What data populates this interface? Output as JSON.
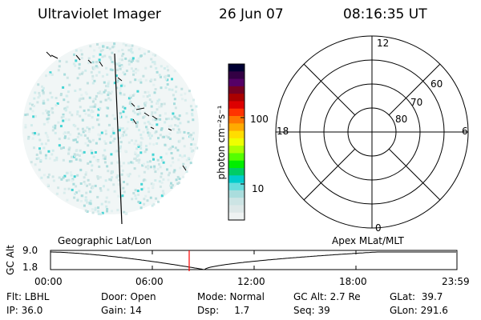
{
  "header": {
    "instrument": "Ultraviolet Imager",
    "date": "26 Jun 07",
    "time": "08:16:35 UT"
  },
  "colorbar": {
    "unit_label": "photon cm⁻²s⁻¹",
    "ticks": [
      "100",
      "10"
    ],
    "colors": [
      "#000033",
      "#330044",
      "#550066",
      "#770022",
      "#aa0000",
      "#dd0000",
      "#ff3300",
      "#ff7700",
      "#ffaa00",
      "#ffdd00",
      "#eeff00",
      "#aaff00",
      "#55ff00",
      "#00ee00",
      "#00cc66",
      "#00cccc",
      "#66dddd",
      "#aadddd",
      "#cce4e4",
      "#dde8e8",
      "#eef2f2"
    ]
  },
  "polar_plot": {
    "mlt_labels": {
      "top": "12",
      "left": "18",
      "right": "6",
      "bottom": "0"
    },
    "lat_labels": [
      "60",
      "70",
      "80"
    ]
  },
  "timeline": {
    "left_title": "Geographic Lat/Lon",
    "right_title": "Apex MLat/MLT",
    "axis_title": "GC Alt",
    "y_ticks": [
      "9.0",
      "1.8"
    ],
    "x_ticks": [
      "00:00",
      "06:00",
      "12:00",
      "18:00",
      "23:59"
    ],
    "current_marker_color": "#ff0000"
  },
  "status": {
    "row1": {
      "flt": "Flt: LBHL",
      "door": "Door: Open",
      "mode": "Mode: Normal",
      "gc_alt": "GC Alt: 2.7 Re",
      "glat": "GLat:  39.7"
    },
    "row2": {
      "ip": "IP: 36.0",
      "gain": "Gain: 14",
      "dsp": "Dsp:     1.7",
      "seq": "Seq: 39",
      "glon": "GLon: 291.6"
    }
  }
}
